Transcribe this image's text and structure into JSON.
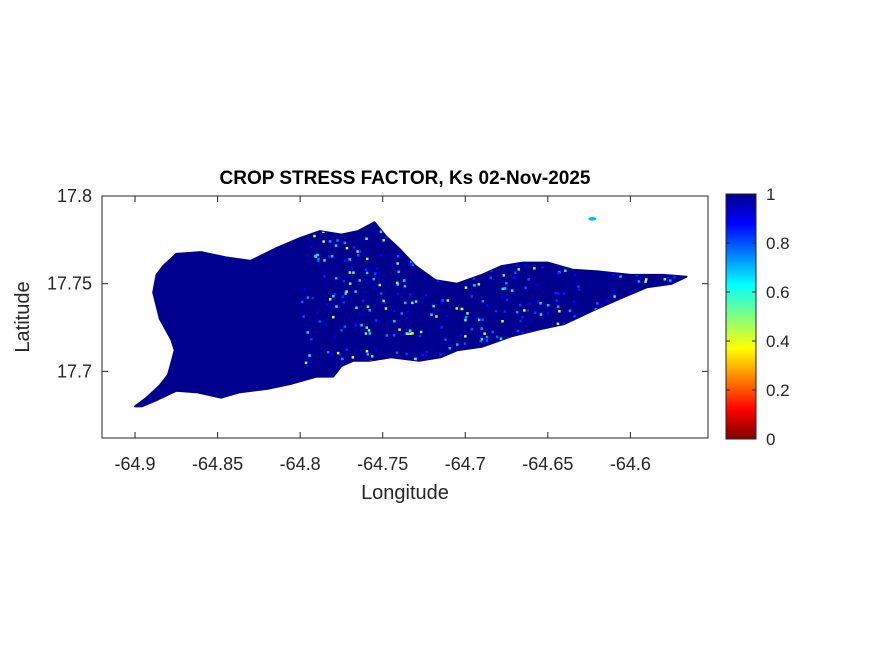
{
  "title": "CROP STRESS FACTOR, Ks  02-Nov-2025",
  "xlabel": "Longitude",
  "ylabel": "Latitude",
  "chart_data": {
    "type": "heatmap",
    "title": "CROP STRESS FACTOR, Ks  02-Nov-2025",
    "xlabel": "Longitude",
    "ylabel": "Latitude",
    "xlim": [
      -64.92,
      -64.553
    ],
    "ylim": [
      17.662,
      17.8
    ],
    "xticks": [
      -64.9,
      -64.85,
      -64.8,
      -64.75,
      -64.7,
      -64.65,
      -64.6
    ],
    "xtick_labels": [
      "-64.9",
      "-64.85",
      "-64.8",
      "-64.75",
      "-64.7",
      "-64.65",
      "-64.6"
    ],
    "yticks": [
      17.7,
      17.75,
      17.8
    ],
    "ytick_labels": [
      "17.7",
      "17.75",
      "17.8"
    ],
    "colormap": "jet",
    "clim": [
      0,
      1
    ],
    "colorbar_ticks": [
      0,
      0.2,
      0.4,
      0.6,
      0.8,
      1
    ],
    "colorbar_labels": [
      "0",
      "0.2",
      "0.4",
      "0.6",
      "0.8",
      "1"
    ],
    "dominant_value": 1,
    "island_outline": [
      [
        -64.9,
        17.68
      ],
      [
        -64.893,
        17.685
      ],
      [
        -64.885,
        17.692
      ],
      [
        -64.88,
        17.698
      ],
      [
        -64.878,
        17.705
      ],
      [
        -64.876,
        17.712
      ],
      [
        -64.878,
        17.718
      ],
      [
        -64.885,
        17.73
      ],
      [
        -64.889,
        17.745
      ],
      [
        -64.887,
        17.755
      ],
      [
        -64.883,
        17.76
      ],
      [
        -64.875,
        17.767
      ],
      [
        -64.86,
        17.768
      ],
      [
        -64.845,
        17.765
      ],
      [
        -64.83,
        17.763
      ],
      [
        -64.815,
        17.77
      ],
      [
        -64.8,
        17.776
      ],
      [
        -64.788,
        17.78
      ],
      [
        -64.775,
        17.778
      ],
      [
        -64.765,
        17.78
      ],
      [
        -64.755,
        17.785
      ],
      [
        -64.748,
        17.777
      ],
      [
        -64.74,
        17.77
      ],
      [
        -64.73,
        17.76
      ],
      [
        -64.718,
        17.752
      ],
      [
        -64.705,
        17.75
      ],
      [
        -64.69,
        17.755
      ],
      [
        -64.678,
        17.76
      ],
      [
        -64.665,
        17.762
      ],
      [
        -64.65,
        17.762
      ],
      [
        -64.635,
        17.758
      ],
      [
        -64.62,
        17.757
      ],
      [
        -64.6,
        17.755
      ],
      [
        -64.58,
        17.755
      ],
      [
        -64.566,
        17.754
      ],
      [
        -64.575,
        17.75
      ],
      [
        -64.59,
        17.748
      ],
      [
        -64.605,
        17.742
      ],
      [
        -64.622,
        17.735
      ],
      [
        -64.64,
        17.727
      ],
      [
        -64.655,
        17.724
      ],
      [
        -64.672,
        17.72
      ],
      [
        -64.69,
        17.714
      ],
      [
        -64.705,
        17.712
      ],
      [
        -64.715,
        17.708
      ],
      [
        -64.728,
        17.706
      ],
      [
        -64.745,
        17.708
      ],
      [
        -64.758,
        17.706
      ],
      [
        -64.768,
        17.706
      ],
      [
        -64.775,
        17.703
      ],
      [
        -64.78,
        17.697
      ],
      [
        -64.79,
        17.697
      ],
      [
        -64.805,
        17.693
      ],
      [
        -64.82,
        17.69
      ],
      [
        -64.837,
        17.688
      ],
      [
        -64.848,
        17.685
      ],
      [
        -64.862,
        17.688
      ],
      [
        -64.875,
        17.689
      ],
      [
        -64.886,
        17.684
      ],
      [
        -64.896,
        17.68
      ]
    ],
    "islet": [
      -64.623,
      17.787
    ]
  }
}
